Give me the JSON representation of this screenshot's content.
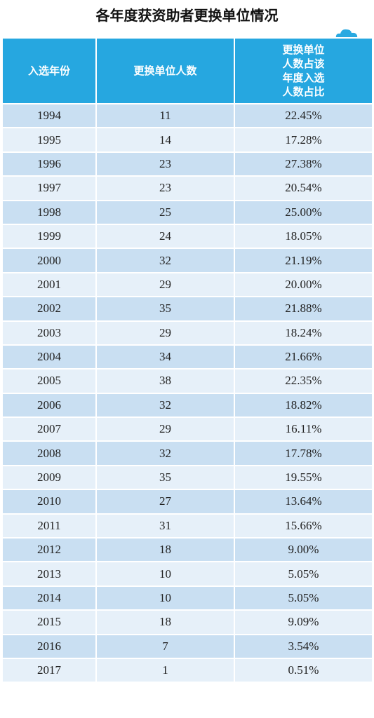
{
  "title": "各年度获资助者更换单位情况",
  "table": {
    "header": [
      "入选年份",
      "更换单位人数",
      "更换单位人数占该年度入选人数占比"
    ],
    "rows": [
      [
        "1994",
        "11",
        "22.45%"
      ],
      [
        "1995",
        "14",
        "17.28%"
      ],
      [
        "1996",
        "23",
        "27.38%"
      ],
      [
        "1997",
        "23",
        "20.54%"
      ],
      [
        "1998",
        "25",
        "25.00%"
      ],
      [
        "1999",
        "24",
        "18.05%"
      ],
      [
        "2000",
        "32",
        "21.19%"
      ],
      [
        "2001",
        "29",
        "20.00%"
      ],
      [
        "2002",
        "35",
        "21.88%"
      ],
      [
        "2003",
        "29",
        "18.24%"
      ],
      [
        "2004",
        "34",
        "21.66%"
      ],
      [
        "2005",
        "38",
        "22.35%"
      ],
      [
        "2006",
        "32",
        "18.82%"
      ],
      [
        "2007",
        "29",
        "16.11%"
      ],
      [
        "2008",
        "32",
        "17.78%"
      ],
      [
        "2009",
        "35",
        "19.55%"
      ],
      [
        "2010",
        "27",
        "13.64%"
      ],
      [
        "2011",
        "31",
        "15.66%"
      ],
      [
        "2012",
        "18",
        "9.00%"
      ],
      [
        "2013",
        "10",
        "5.05%"
      ],
      [
        "2014",
        "10",
        "5.05%"
      ],
      [
        "2015",
        "18",
        "9.09%"
      ],
      [
        "2016",
        "7",
        "3.54%"
      ],
      [
        "2017",
        "1",
        "0.51%"
      ]
    ]
  }
}
